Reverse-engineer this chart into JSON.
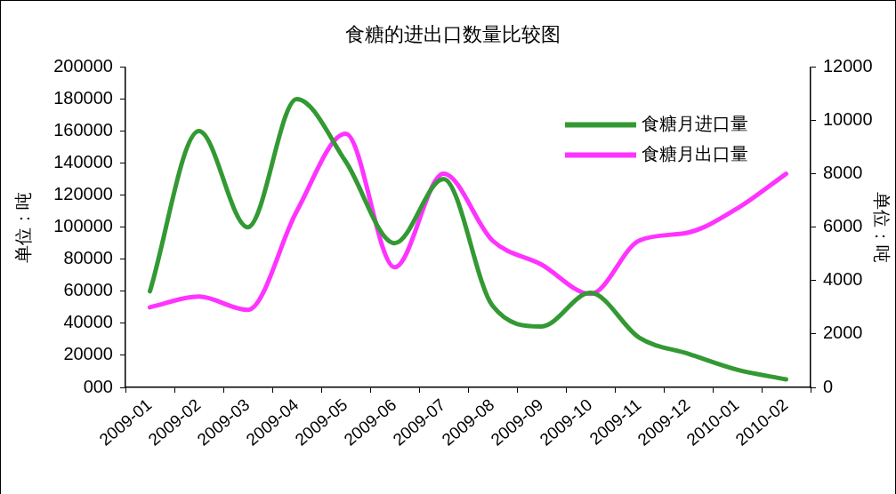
{
  "chart_data": {
    "type": "line",
    "title": "食糖的进出口数量比较图",
    "ylabel": "单位：吨",
    "y2label": "单位：吨",
    "categories": [
      "2009-01",
      "2009-02",
      "2009-03",
      "2009-04",
      "2009-05",
      "2009-06",
      "2009-07",
      "2009-08",
      "2009-09",
      "2009-10",
      "2009-11",
      "2009-12",
      "2010-01",
      "2010-02"
    ],
    "series": [
      {
        "name": "食糖月进口量",
        "color": "#339933",
        "values": [
          60000,
          160000,
          100000,
          180000,
          141000,
          90000,
          130000,
          51000,
          38000,
          59000,
          31000,
          21000,
          11000,
          5000
        ]
      },
      {
        "name": "食糖月出口量",
        "color": "#ff33ff",
        "axis": "y2",
        "values": [
          3000,
          3400,
          2900,
          6600,
          9500,
          4500,
          8000,
          5500,
          4600,
          3500,
          5500,
          5800,
          6700,
          8000
        ]
      }
    ],
    "ylim": [
      0,
      200000
    ],
    "yticks": [
      {
        "value": 0,
        "label": "000"
      },
      20000,
      40000,
      60000,
      80000,
      100000,
      120000,
      140000,
      160000,
      180000,
      200000
    ],
    "y2lim": [
      0,
      12000
    ],
    "y2ticks": [
      0,
      2000,
      4000,
      6000,
      8000,
      10000,
      12000
    ],
    "legend": "top right",
    "grid": false,
    "marker": "none",
    "line_style": "solid"
  }
}
